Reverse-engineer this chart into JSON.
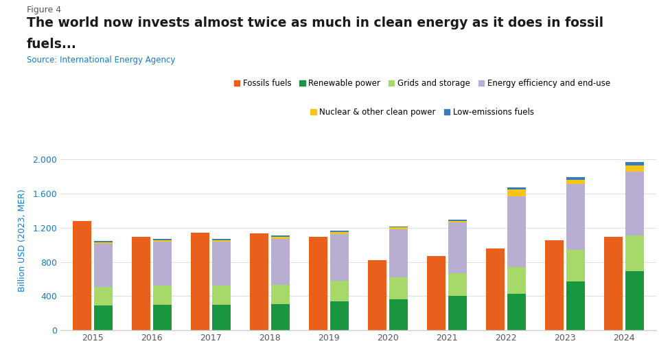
{
  "years": [
    2015,
    2016,
    2017,
    2018,
    2019,
    2020,
    2021,
    2022,
    2023,
    2024
  ],
  "fossil_fuels": [
    1280,
    1090,
    1140,
    1130,
    1090,
    820,
    870,
    960,
    1050,
    1090
  ],
  "renewable_power": [
    290,
    295,
    300,
    305,
    340,
    365,
    400,
    430,
    570,
    690
  ],
  "grids_storage": [
    220,
    230,
    225,
    230,
    240,
    255,
    270,
    310,
    370,
    420
  ],
  "energy_efficiency": [
    500,
    510,
    510,
    535,
    545,
    560,
    590,
    830,
    770,
    750
  ],
  "nuclear_other": [
    20,
    22,
    22,
    22,
    22,
    22,
    22,
    80,
    50,
    65
  ],
  "low_emissions": [
    15,
    15,
    15,
    15,
    15,
    15,
    15,
    18,
    30,
    45
  ],
  "colors": {
    "fossil_fuels": "#e8601c",
    "renewable_power": "#1a9641",
    "grids_storage": "#a6d96a",
    "energy_efficiency": "#b8aed2",
    "nuclear_other": "#f5c518",
    "low_emissions": "#3a7db5"
  },
  "legend_labels": [
    "Fossils fuels",
    "Renewable power",
    "Grids and storage",
    "Energy efficiency and end-use",
    "Nuclear & other clean power",
    "Low-emissions fuels"
  ],
  "title_figure": "Figure 4",
  "title_main_line1": "The world now invests almost twice as much in clean energy as it does in fossil",
  "title_main_line2": "fuels...",
  "source": "Source: International Energy Agency",
  "ylabel": "Billion USD (2023, MER)",
  "ylim": [
    0,
    2100
  ],
  "yticks": [
    0,
    400,
    800,
    1200,
    1600,
    2000
  ],
  "ytick_labels": [
    "0",
    "400",
    "800",
    "1.200",
    "1.600",
    "2.000"
  ],
  "background_color": "#ffffff",
  "title_color": "#1a1a1a",
  "figure_label_color": "#555555",
  "source_color": "#1a78c2",
  "ylabel_color": "#1a78c2",
  "axis_color": "#cccccc",
  "tick_color": "#555555",
  "grid_color": "#e0e0e0"
}
